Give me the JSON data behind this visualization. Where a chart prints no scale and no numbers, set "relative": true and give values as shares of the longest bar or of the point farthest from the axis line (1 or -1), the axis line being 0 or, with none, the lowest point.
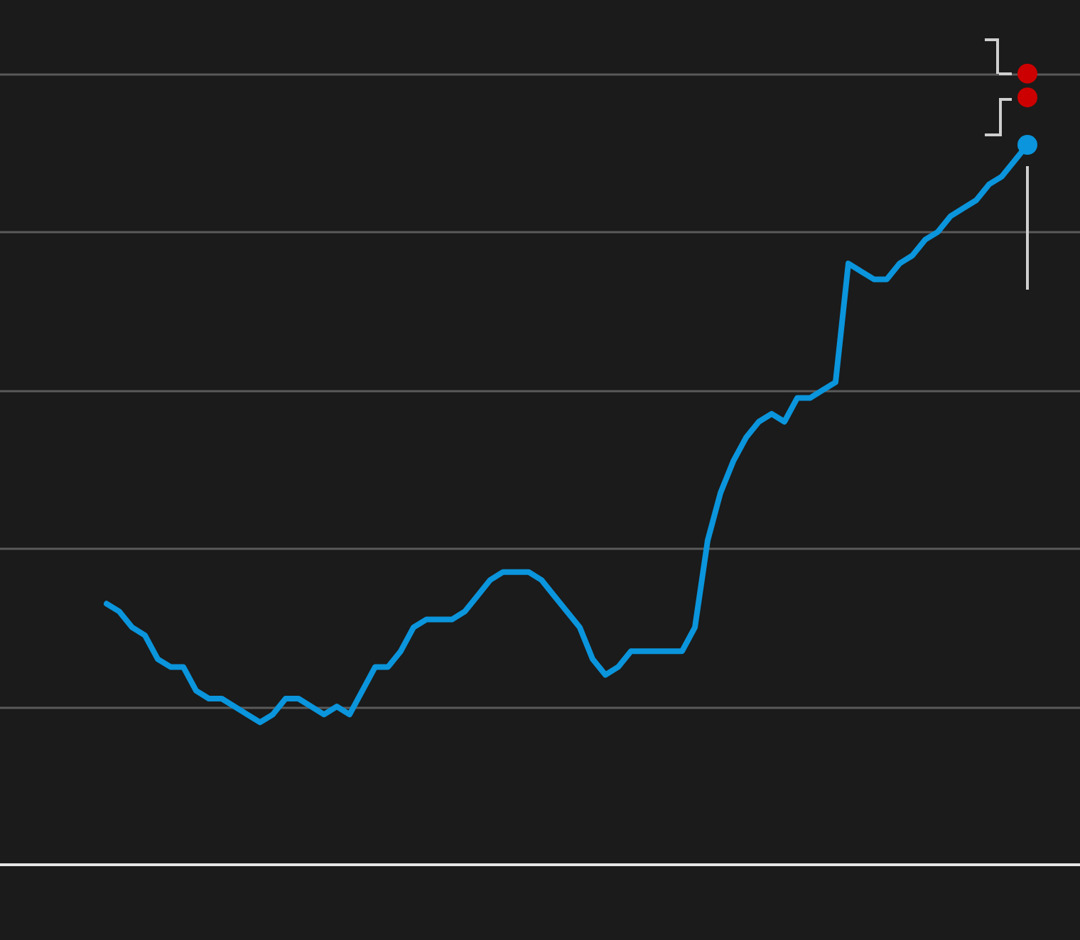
{
  "chart_data": {
    "type": "line",
    "relative": true,
    "grid": "y",
    "legend": false,
    "tick_labels": false,
    "categories": [
      null,
      null,
      null,
      null,
      null,
      null,
      null,
      null,
      null,
      null,
      null,
      null,
      null,
      null,
      null,
      null,
      null,
      null,
      null,
      null,
      null,
      null,
      null,
      null,
      null,
      null,
      null,
      null,
      null,
      null,
      null,
      null,
      null,
      null,
      null,
      null,
      null,
      null,
      null,
      null,
      null,
      null,
      null,
      null,
      null,
      null,
      null,
      null,
      null,
      null,
      null,
      null,
      null,
      null,
      null,
      null,
      null,
      null,
      null,
      null,
      null,
      null,
      null,
      null,
      null,
      null,
      null,
      null,
      null,
      null,
      null,
      null,
      null
    ],
    "series": [
      {
        "color": "#0a95dc",
        "marker": "none",
        "line_style": "solid",
        "values": [
          0.33,
          0.32,
          0.3,
          0.29,
          0.26,
          0.25,
          0.25,
          0.22,
          0.21,
          0.21,
          0.2,
          0.19,
          0.18,
          0.19,
          0.21,
          0.21,
          0.2,
          0.19,
          0.2,
          0.19,
          0.22,
          0.25,
          0.25,
          0.27,
          0.3,
          0.31,
          0.31,
          0.31,
          0.32,
          0.34,
          0.36,
          0.37,
          0.37,
          0.37,
          0.36,
          0.34,
          0.32,
          0.3,
          0.26,
          0.24,
          0.25,
          0.27,
          0.27,
          0.27,
          0.27,
          0.27,
          0.3,
          0.41,
          0.47,
          0.51,
          0.54,
          0.56,
          0.57,
          0.56,
          0.59,
          0.59,
          0.6,
          0.61,
          0.76,
          0.75,
          0.74,
          0.74,
          0.76,
          0.77,
          0.79,
          0.8,
          0.82,
          0.83,
          0.84,
          0.86,
          0.87,
          0.89,
          0.91
        ]
      },
      {
        "color": "#0a95dc",
        "marker": "circle",
        "values": [
          null,
          null,
          null,
          null,
          null,
          null,
          null,
          null,
          null,
          null,
          null,
          null,
          null,
          null,
          null,
          null,
          null,
          null,
          null,
          null,
          null,
          null,
          null,
          null,
          null,
          null,
          null,
          null,
          null,
          null,
          null,
          null,
          null,
          null,
          null,
          null,
          null,
          null,
          null,
          null,
          null,
          null,
          null,
          null,
          null,
          null,
          null,
          null,
          null,
          null,
          null,
          null,
          null,
          null,
          null,
          null,
          null,
          null,
          null,
          null,
          null,
          null,
          null,
          null,
          null,
          null,
          null,
          null,
          null,
          null,
          null,
          null,
          0.91
        ]
      },
      {
        "color": "#cc0000",
        "marker": "circle",
        "values": [
          null,
          null,
          null,
          null,
          null,
          null,
          null,
          null,
          null,
          null,
          null,
          null,
          null,
          null,
          null,
          null,
          null,
          null,
          null,
          null,
          null,
          null,
          null,
          null,
          null,
          null,
          null,
          null,
          null,
          null,
          null,
          null,
          null,
          null,
          null,
          null,
          null,
          null,
          null,
          null,
          null,
          null,
          null,
          null,
          null,
          null,
          null,
          null,
          null,
          null,
          null,
          null,
          null,
          null,
          null,
          null,
          null,
          null,
          null,
          null,
          null,
          null,
          null,
          null,
          null,
          null,
          null,
          null,
          null,
          null,
          null,
          null,
          1.0
        ]
      },
      {
        "color": "#cc0000",
        "marker": "circle",
        "values": [
          null,
          null,
          null,
          null,
          null,
          null,
          null,
          null,
          null,
          null,
          null,
          null,
          null,
          null,
          null,
          null,
          null,
          null,
          null,
          null,
          null,
          null,
          null,
          null,
          null,
          null,
          null,
          null,
          null,
          null,
          null,
          null,
          null,
          null,
          null,
          null,
          null,
          null,
          null,
          null,
          null,
          null,
          null,
          null,
          null,
          null,
          null,
          null,
          null,
          null,
          null,
          null,
          null,
          null,
          null,
          null,
          null,
          null,
          null,
          null,
          null,
          null,
          null,
          null,
          null,
          null,
          null,
          null,
          null,
          null,
          null,
          null,
          0.97
        ]
      }
    ]
  }
}
